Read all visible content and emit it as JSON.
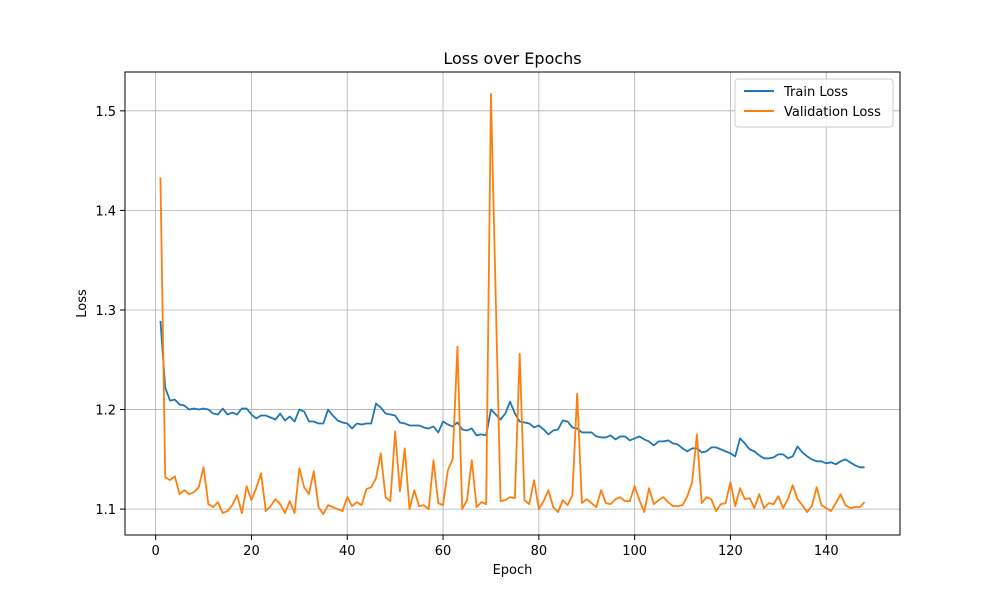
{
  "chart_data": {
    "type": "line",
    "title": "Loss over Epochs",
    "xlabel": "Epoch",
    "ylabel": "Loss",
    "xlim": [
      -6.4,
      155.4
    ],
    "ylim": [
      1.074,
      1.539
    ],
    "xticks": [
      0,
      20,
      40,
      60,
      80,
      100,
      120,
      140
    ],
    "yticks": [
      1.1,
      1.2,
      1.3,
      1.4,
      1.5
    ],
    "grid": true,
    "legend_position": "top-right",
    "colors": {
      "train": "#1f77b4",
      "validation": "#ff7f0e"
    },
    "x_start": 1,
    "series": [
      {
        "name": "Train Loss",
        "color": "#1f77b4",
        "values": [
          1.289,
          1.222,
          1.209,
          1.21,
          1.205,
          1.204,
          1.2,
          1.201,
          1.2,
          1.201,
          1.2,
          1.196,
          1.195,
          1.201,
          1.195,
          1.197,
          1.195,
          1.201,
          1.201,
          1.195,
          1.191,
          1.194,
          1.194,
          1.192,
          1.19,
          1.196,
          1.189,
          1.193,
          1.188,
          1.2,
          1.198,
          1.188,
          1.188,
          1.186,
          1.186,
          1.2,
          1.194,
          1.189,
          1.187,
          1.186,
          1.181,
          1.186,
          1.185,
          1.186,
          1.186,
          1.206,
          1.202,
          1.196,
          1.195,
          1.194,
          1.187,
          1.186,
          1.184,
          1.184,
          1.184,
          1.182,
          1.181,
          1.183,
          1.177,
          1.188,
          1.185,
          1.183,
          1.187,
          1.18,
          1.179,
          1.181,
          1.174,
          1.175,
          1.174,
          1.2,
          1.195,
          1.19,
          1.196,
          1.208,
          1.196,
          1.188,
          1.187,
          1.186,
          1.182,
          1.184,
          1.18,
          1.175,
          1.179,
          1.18,
          1.189,
          1.188,
          1.182,
          1.181,
          1.177,
          1.177,
          1.177,
          1.173,
          1.172,
          1.172,
          1.174,
          1.17,
          1.173,
          1.173,
          1.169,
          1.171,
          1.173,
          1.17,
          1.168,
          1.164,
          1.168,
          1.168,
          1.169,
          1.166,
          1.165,
          1.161,
          1.158,
          1.161,
          1.161,
          1.157,
          1.158,
          1.162,
          1.162,
          1.16,
          1.158,
          1.156,
          1.153,
          1.171,
          1.166,
          1.16,
          1.158,
          1.154,
          1.151,
          1.151,
          1.152,
          1.155,
          1.155,
          1.151,
          1.153,
          1.163,
          1.157,
          1.153,
          1.15,
          1.148,
          1.148,
          1.146,
          1.147,
          1.145,
          1.148,
          1.15,
          1.147,
          1.144,
          1.142,
          1.142
        ]
      },
      {
        "name": "Validation Loss",
        "color": "#ff7f0e",
        "values": [
          1.433,
          1.132,
          1.129,
          1.133,
          1.115,
          1.119,
          1.115,
          1.117,
          1.122,
          1.142,
          1.105,
          1.102,
          1.107,
          1.096,
          1.098,
          1.104,
          1.114,
          1.096,
          1.123,
          1.109,
          1.121,
          1.136,
          1.098,
          1.103,
          1.11,
          1.105,
          1.096,
          1.108,
          1.096,
          1.141,
          1.122,
          1.115,
          1.138,
          1.102,
          1.095,
          1.104,
          1.102,
          1.1,
          1.098,
          1.112,
          1.103,
          1.107,
          1.104,
          1.12,
          1.122,
          1.131,
          1.156,
          1.112,
          1.108,
          1.178,
          1.118,
          1.161,
          1.1,
          1.119,
          1.103,
          1.104,
          1.1,
          1.149,
          1.106,
          1.104,
          1.139,
          1.15,
          1.263,
          1.1,
          1.109,
          1.149,
          1.102,
          1.107,
          1.105,
          1.517,
          1.312,
          1.108,
          1.109,
          1.112,
          1.111,
          1.256,
          1.109,
          1.105,
          1.129,
          1.1,
          1.108,
          1.119,
          1.102,
          1.097,
          1.109,
          1.104,
          1.114,
          1.216,
          1.106,
          1.11,
          1.106,
          1.102,
          1.119,
          1.106,
          1.105,
          1.11,
          1.112,
          1.108,
          1.108,
          1.123,
          1.109,
          1.097,
          1.121,
          1.105,
          1.109,
          1.112,
          1.107,
          1.103,
          1.103,
          1.104,
          1.113,
          1.127,
          1.175,
          1.106,
          1.112,
          1.11,
          1.098,
          1.105,
          1.106,
          1.127,
          1.103,
          1.121,
          1.11,
          1.111,
          1.101,
          1.115,
          1.101,
          1.106,
          1.105,
          1.113,
          1.101,
          1.11,
          1.124,
          1.11,
          1.104,
          1.097,
          1.103,
          1.122,
          1.104,
          1.101,
          1.098,
          1.106,
          1.115,
          1.104,
          1.101,
          1.102,
          1.102,
          1.107
        ]
      }
    ]
  }
}
